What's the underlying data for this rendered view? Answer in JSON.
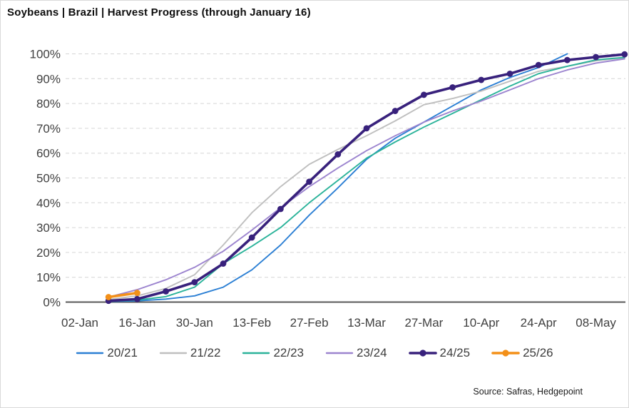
{
  "title": "Soybeans | Brazil | Harvest Progress (through January 16)",
  "source": "Source: Safras, Hedgepoint",
  "chart_data": {
    "type": "line",
    "title": "Soybeans | Brazil | Harvest Progress (through January 16)",
    "xlabel": "",
    "ylabel": "",
    "ylim": [
      0,
      100
    ],
    "grid": "horizontal-dashed",
    "legend_position": "bottom",
    "y_tick_labels": [
      "0%",
      "10%",
      "20%",
      "30%",
      "40%",
      "50%",
      "60%",
      "70%",
      "80%",
      "90%",
      "100%"
    ],
    "x_tick_labels": [
      "02-Jan",
      "16-Jan",
      "30-Jan",
      "13-Feb",
      "27-Feb",
      "13-Mar",
      "27-Mar",
      "10-Apr",
      "24-Apr",
      "08-May"
    ],
    "x_weekly_dates": [
      "02-Jan",
      "09-Jan",
      "16-Jan",
      "23-Jan",
      "30-Jan",
      "06-Feb",
      "13-Feb",
      "20-Feb",
      "27-Feb",
      "06-Mar",
      "13-Mar",
      "20-Mar",
      "27-Mar",
      "03-Apr",
      "10-Apr",
      "17-Apr",
      "24-Apr",
      "01-May",
      "08-May",
      "15-May"
    ],
    "series": [
      {
        "name": "20/21",
        "color": "#2b7fd4",
        "thick": false,
        "markers": false,
        "values": [
          null,
          0.2,
          0.5,
          1.2,
          2.5,
          6,
          13,
          23,
          35,
          46,
          57.5,
          66,
          72.5,
          79,
          85.5,
          90.5,
          94.5,
          100,
          null,
          null
        ]
      },
      {
        "name": "21/22",
        "color": "#bfbfbf",
        "thick": false,
        "markers": false,
        "values": [
          null,
          1,
          2.5,
          5.5,
          11,
          23,
          36,
          46.5,
          55.5,
          61.5,
          67,
          73,
          79.5,
          82,
          85,
          89,
          93,
          95,
          97.2,
          98.4
        ]
      },
      {
        "name": "22/23",
        "color": "#2bb39a",
        "thick": false,
        "markers": false,
        "values": [
          null,
          0.3,
          0.8,
          2.2,
          6,
          15.5,
          22.5,
          30,
          40,
          49,
          58,
          64.5,
          70.5,
          76,
          81.5,
          87,
          92,
          95,
          97.6,
          98.6
        ]
      },
      {
        "name": "23/24",
        "color": "#9c84cf",
        "thick": false,
        "markers": false,
        "values": [
          null,
          2,
          5,
          9,
          14,
          20.5,
          29,
          38,
          46.5,
          54,
          61,
          67,
          72.5,
          77,
          81,
          85.5,
          90,
          93.5,
          96.3,
          98
        ]
      },
      {
        "name": "24/25",
        "color": "#38217c",
        "thick": true,
        "markers": true,
        "values": [
          null,
          0.5,
          1.2,
          4.3,
          8,
          15.5,
          26,
          37.5,
          48.5,
          59.5,
          70,
          77,
          83.5,
          86.5,
          89.5,
          92,
          95.5,
          97.5,
          98.7,
          99.8
        ]
      },
      {
        "name": "25/26",
        "color": "#f39019",
        "thick": true,
        "markers": true,
        "values": [
          null,
          2,
          3.7,
          null,
          null,
          null,
          null,
          null,
          null,
          null,
          null,
          null,
          null,
          null,
          null,
          null,
          null,
          null,
          null,
          null
        ]
      }
    ]
  }
}
